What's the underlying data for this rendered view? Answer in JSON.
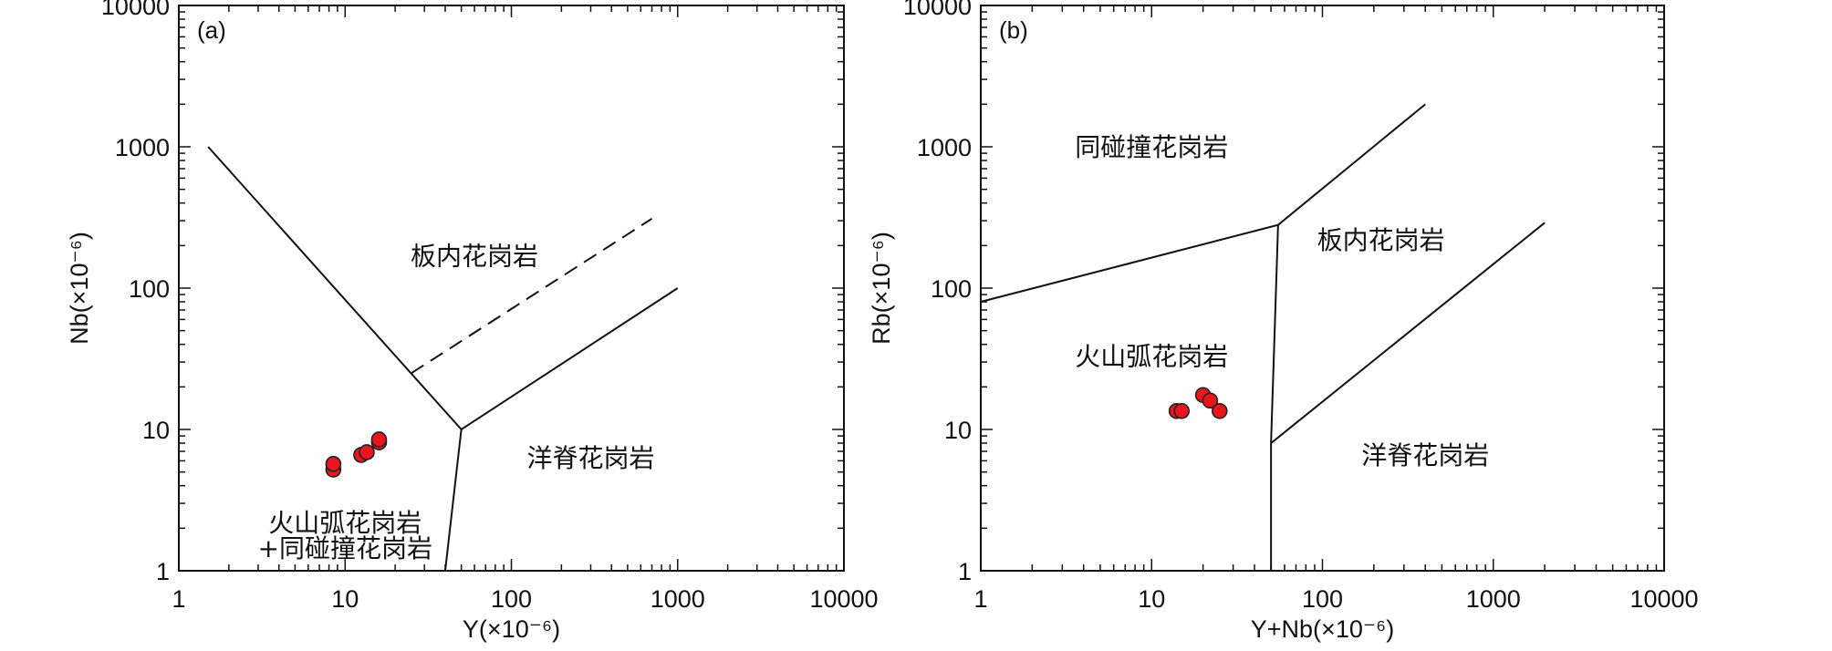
{
  "chart_data": [
    {
      "type": "scatter",
      "panel_label": "(a)",
      "xlabel": "Y(×10⁻⁶)",
      "ylabel": "Nb(×10⁻⁶)",
      "xscale": "log",
      "yscale": "log",
      "xlim": [
        1,
        10000
      ],
      "ylim": [
        1,
        10000
      ],
      "x_ticks": [
        "1",
        "10",
        "100",
        "1000",
        "10000"
      ],
      "y_ticks": [
        "1",
        "10",
        "100",
        "1000",
        "10000"
      ],
      "marker_color": "#e8161d",
      "boundary_color": "#111111",
      "region_labels": [
        {
          "text": "板内花岗岩",
          "x": 60,
          "y": 170
        },
        {
          "text": "洋脊花岗岩",
          "x": 300,
          "y": 6.3
        },
        {
          "text": "火山弧花岗岩",
          "x": 10,
          "y": 2.2
        },
        {
          "text": "+同碰撞花岗岩",
          "x": 10,
          "y": 1.45
        }
      ],
      "boundaries": [
        {
          "style": "solid",
          "points": [
            [
              1.5,
              1000
            ],
            [
              50,
              10
            ],
            [
              40,
              1
            ]
          ]
        },
        {
          "style": "solid",
          "points": [
            [
              50,
              10
            ],
            [
              1000,
              100
            ]
          ]
        },
        {
          "style": "dashed",
          "points": [
            [
              25,
              25
            ],
            [
              700,
              310
            ]
          ]
        }
      ],
      "points": [
        {
          "x": 8.5,
          "y": 5.2
        },
        {
          "x": 8.5,
          "y": 5.7
        },
        {
          "x": 12.5,
          "y": 6.6
        },
        {
          "x": 13.5,
          "y": 6.9
        },
        {
          "x": 16,
          "y": 8.1
        },
        {
          "x": 16,
          "y": 8.5
        }
      ]
    },
    {
      "type": "scatter",
      "panel_label": "(b)",
      "xlabel": "Y+Nb(×10⁻⁶)",
      "ylabel": "Rb(×10⁻⁶)",
      "xscale": "log",
      "yscale": "log",
      "xlim": [
        1,
        10000
      ],
      "ylim": [
        1,
        10000
      ],
      "x_ticks": [
        "1",
        "10",
        "100",
        "1000",
        "10000"
      ],
      "y_ticks": [
        "1",
        "10",
        "100",
        "1000",
        "10000"
      ],
      "marker_color": "#e8161d",
      "boundary_color": "#111111",
      "region_labels": [
        {
          "text": "同碰撞花岗岩",
          "x": 10,
          "y": 1000
        },
        {
          "text": "板内花岗岩",
          "x": 220,
          "y": 220
        },
        {
          "text": "火山弧花岗岩",
          "x": 10,
          "y": 33
        },
        {
          "text": "洋脊花岗岩",
          "x": 400,
          "y": 6.6
        }
      ],
      "boundaries": [
        {
          "style": "solid",
          "points": [
            [
              1,
              80
            ],
            [
              55,
              280
            ],
            [
              400,
              2000
            ]
          ]
        },
        {
          "style": "solid",
          "points": [
            [
              55,
              280
            ],
            [
              50,
              8
            ],
            [
              50,
              1
            ]
          ]
        },
        {
          "style": "solid",
          "points": [
            [
              50,
              8
            ],
            [
              2000,
              290
            ]
          ]
        }
      ],
      "points": [
        {
          "x": 14,
          "y": 13.5
        },
        {
          "x": 15,
          "y": 13.5
        },
        {
          "x": 20,
          "y": 17.5
        },
        {
          "x": 22,
          "y": 16
        },
        {
          "x": 25,
          "y": 13.5
        }
      ]
    }
  ]
}
